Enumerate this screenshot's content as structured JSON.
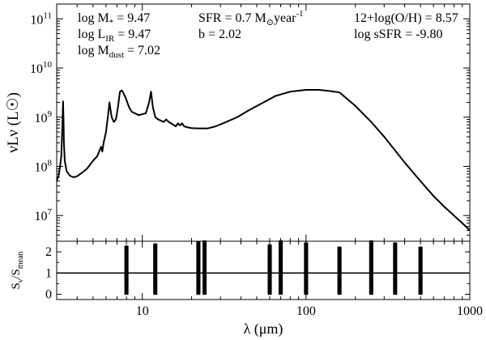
{
  "chart_data": [
    {
      "type": "line",
      "panel": "sed",
      "ylabel": "νLν (L☉)",
      "xlabel": "",
      "xscale": "log",
      "yscale": "log",
      "xlim": [
        3,
        1000
      ],
      "ylim": [
        3000000.0,
        200000000000.0
      ],
      "x_ticks": [],
      "y_ticks": [
        {
          "value": 10000000.0,
          "base": "10",
          "exp": "7"
        },
        {
          "value": 100000000.0,
          "base": "10",
          "exp": "8"
        },
        {
          "value": 1000000000.0,
          "base": "10",
          "exp": "9"
        },
        {
          "value": 10000000000.0,
          "base": "10",
          "exp": "10"
        },
        {
          "value": 100000000000.0,
          "base": "10",
          "exp": "11"
        }
      ],
      "annotations": [
        {
          "base": "log M",
          "sub": "*",
          "sup": "",
          "post": " = 9.47",
          "anchor": "left-1"
        },
        {
          "base": "log L",
          "sub": "IR",
          "sup": "",
          "post": " = 9.47",
          "anchor": "left-2"
        },
        {
          "base": "log M",
          "sub": "dust",
          "sup": "",
          "post": " = 7.02",
          "anchor": "left-3"
        },
        {
          "base": "SFR = 0.7 M",
          "sub": "⊙",
          "sup": "",
          "post": "year",
          "sup2": "-1",
          "anchor": "mid-1"
        },
        {
          "base": "b = 2.02",
          "sub": "",
          "sup": "",
          "post": "",
          "anchor": "mid-2"
        },
        {
          "base": "12+log(O/H) = 8.57",
          "sub": "",
          "sup": "",
          "post": "",
          "anchor": "right-1"
        },
        {
          "base": "log sSFR = -9.80",
          "sub": "",
          "sup": "",
          "post": "",
          "anchor": "right-2"
        }
      ],
      "series": [
        {
          "x": [
            3.0,
            3.1,
            3.2,
            3.25,
            3.28,
            3.3,
            3.32,
            3.36,
            3.45,
            3.6,
            3.8,
            4.0,
            4.3,
            4.6,
            5.0,
            5.3,
            5.6,
            5.7,
            5.8,
            6.0,
            6.2,
            6.3,
            6.5,
            6.7,
            6.9,
            7.1,
            7.3,
            7.5,
            7.7,
            7.9,
            8.1,
            8.3,
            8.6,
            9.0,
            9.5,
            10.0,
            10.5,
            11.0,
            11.3,
            11.6,
            12.0,
            12.5,
            13.0,
            13.5,
            14.0,
            14.5,
            15.0,
            16.0,
            16.5,
            17.0,
            17.5,
            18.0,
            19.0,
            20.0,
            22.0,
            25.0,
            28.0,
            32.0,
            38.0,
            45.0,
            55.0,
            65.0,
            80.0,
            100.0,
            120.0,
            140.0,
            160.0,
            200.0,
            250.0,
            300.0,
            400.0,
            500.0,
            600.0,
            700.0,
            800.0,
            900.0,
            1000.0
          ],
          "y": [
            50000000.0,
            70000000.0,
            160000000.0,
            700000000.0,
            2100000000.0,
            1000000000.0,
            300000000.0,
            130000000.0,
            80000000.0,
            65000000.0,
            60000000.0,
            63000000.0,
            75000000.0,
            90000000.0,
            130000000.0,
            160000000.0,
            250000000.0,
            200000000.0,
            300000000.0,
            500000000.0,
            1200000000.0,
            2000000000.0,
            1000000000.0,
            800000000.0,
            900000000.0,
            1600000000.0,
            3300000000.0,
            3500000000.0,
            3000000000.0,
            2500000000.0,
            2000000000.0,
            1600000000.0,
            1300000000.0,
            1200000000.0,
            1100000000.0,
            1150000000.0,
            1200000000.0,
            2000000000.0,
            3300000000.0,
            1600000000.0,
            1000000000.0,
            900000000.0,
            850000000.0,
            800000000.0,
            900000000.0,
            800000000.0,
            750000000.0,
            650000000.0,
            750000000.0,
            680000000.0,
            750000000.0,
            650000000.0,
            620000000.0,
            600000000.0,
            590000000.0,
            590000000.0,
            650000000.0,
            780000000.0,
            1000000000.0,
            1400000000.0,
            2000000000.0,
            2700000000.0,
            3300000000.0,
            3600000000.0,
            3600000000.0,
            3400000000.0,
            3200000000.0,
            1700000000.0,
            800000000.0,
            400000000.0,
            120000000.0,
            50000000.0,
            25000000.0,
            15000000.0,
            10000000.0,
            7000000.0,
            5000000.0
          ]
        }
      ]
    },
    {
      "type": "scatter",
      "panel": "residuals",
      "xlabel": "λ (μm)",
      "ylabel_base": "S",
      "ylabel_sub1": "ν",
      "ylabel_mid": "/S",
      "ylabel_sub2": "mean",
      "xscale": "log",
      "xlim": [
        3,
        1000
      ],
      "ylim": [
        -0.25,
        2.5
      ],
      "x_ticks": [
        {
          "value": 10,
          "label": "10"
        },
        {
          "value": 100,
          "label": "100"
        },
        {
          "value": 1000,
          "label": "1000"
        }
      ],
      "y_ticks": [
        {
          "value": 0,
          "label": "0"
        },
        {
          "value": 1,
          "label": "1"
        },
        {
          "value": 2,
          "label": "2"
        }
      ],
      "reference_line": 1,
      "bands": [
        {
          "x": 8,
          "ymin": 0.02,
          "ymax": 2.25
        },
        {
          "x": 12,
          "ymin": 0.02,
          "ymax": 2.35
        },
        {
          "x": 22,
          "ymin": 0.02,
          "ymax": 2.45
        },
        {
          "x": 24,
          "ymin": 0.02,
          "ymax": 2.5
        },
        {
          "x": 60,
          "ymin": 0.02,
          "ymax": 2.3
        },
        {
          "x": 70,
          "ymin": 0.02,
          "ymax": 2.5
        },
        {
          "x": 100,
          "ymin": 0.02,
          "ymax": 2.4
        },
        {
          "x": 160,
          "ymin": 0.02,
          "ymax": 2.2
        },
        {
          "x": 250,
          "ymin": 0.02,
          "ymax": 2.5
        },
        {
          "x": 350,
          "ymin": 0.02,
          "ymax": 2.4
        },
        {
          "x": 500,
          "ymin": 0.02,
          "ymax": 2.2
        }
      ]
    }
  ]
}
